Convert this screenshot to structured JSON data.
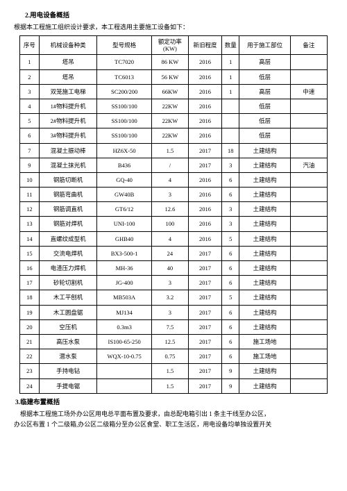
{
  "section2_title": "2.用电设备概括",
  "intro": "根据本工程施工组织设计要求，本工程选用主要施工设备如下：",
  "headers": [
    "序号",
    "机械设备种类",
    "型号规格",
    "额定功率(KW)",
    "新旧程度",
    "数量",
    "用于施工部位",
    "备注"
  ],
  "rows": [
    [
      "1",
      "塔吊",
      "TC7020",
      "86 KW",
      "2016",
      "1",
      "高层",
      ""
    ],
    [
      "2",
      "塔吊",
      "TC6013",
      "56 KW",
      "2016",
      "1",
      "低层",
      ""
    ],
    [
      "3",
      "双笼施工电梯",
      "SC200/200",
      "66KW",
      "2016",
      "1",
      "高层",
      "中速"
    ],
    [
      "4",
      "1#物料提升机",
      "SS100/100",
      "22KW",
      "2016",
      "",
      "低层",
      ""
    ],
    [
      "5",
      "2#物料提升机",
      "SS100/100",
      "22KW",
      "2016",
      "",
      "低层",
      ""
    ],
    [
      "6",
      "3#物料提升机",
      "SS100/100",
      "22KW",
      "2016",
      "",
      "低层",
      ""
    ],
    [
      "7",
      "混凝土振动棒",
      "HZ6X-50",
      "1.5",
      "2017",
      "18",
      "土建结构",
      ""
    ],
    [
      "9",
      "混凝土抹光机",
      "B436",
      "/",
      "2017",
      "3",
      "土建结构",
      "汽油"
    ],
    [
      "10",
      "钢筋切断机",
      "GQ-40",
      "4",
      "2016",
      "6",
      "土建结构",
      ""
    ],
    [
      "11",
      "钢筋弯曲机",
      "GW40B",
      "3",
      "2016",
      "6",
      "土建结构",
      ""
    ],
    [
      "12",
      "钢筋调直机",
      "GT6/12",
      "12.6",
      "2016",
      "3",
      "土建结构",
      ""
    ],
    [
      "13",
      "钢筋对焊机",
      "UNI-100",
      "100",
      "2016",
      "3",
      "土建结构",
      ""
    ],
    [
      "14",
      "直螺纹成型机",
      "GHB40",
      "4",
      "2016",
      "5",
      "土建结构",
      ""
    ],
    [
      "15",
      "交流电焊机",
      "BX3-500-1",
      "24",
      "2017",
      "6",
      "土建结构",
      ""
    ],
    [
      "16",
      "电渣压力焊机",
      "MH-36",
      "40",
      "2017",
      "6",
      "土建结构",
      ""
    ],
    [
      "17",
      "砂轮切割机",
      "JG-400",
      "3",
      "2017",
      "6",
      "土建结构",
      ""
    ],
    [
      "18",
      "木工平刨机",
      "MB503A",
      "3.2",
      "2017",
      "5",
      "土建结构",
      ""
    ],
    [
      "19",
      "木工圆盘锯",
      "MJ134",
      "3",
      "2017",
      "6",
      "土建结构",
      ""
    ],
    [
      "20",
      "空压机",
      "0.3m3",
      "7.5",
      "2017",
      "6",
      "土建结构",
      ""
    ],
    [
      "21",
      "高压水泵",
      "IS100-65-250",
      "12.5",
      "2017",
      "6",
      "施工场地",
      ""
    ],
    [
      "22",
      "潜水泵",
      "WQX-10-0.75",
      "0.75",
      "2017",
      "6",
      "施工场地",
      ""
    ],
    [
      "23",
      "手持电钻",
      "",
      "1.5",
      "2017",
      "9",
      "土建结构",
      ""
    ],
    [
      "24",
      "手提电锯",
      "",
      "1.5",
      "2017",
      "9",
      "土建结构",
      ""
    ]
  ],
  "section3_title": "3.临建布置概括",
  "footer_line1": "根据本工程施工场外办公区用电总平面布置及要求，由总配电箱引出 1 条主干线至办公区，",
  "footer_line2": "办公区布置 1 个二级箱,办公区二级箱分至办公区食堂、职工生活区，用电设备均单独设置开关",
  "colors": {
    "text": "#000000",
    "border": "#000000",
    "bg": "#ffffff"
  }
}
